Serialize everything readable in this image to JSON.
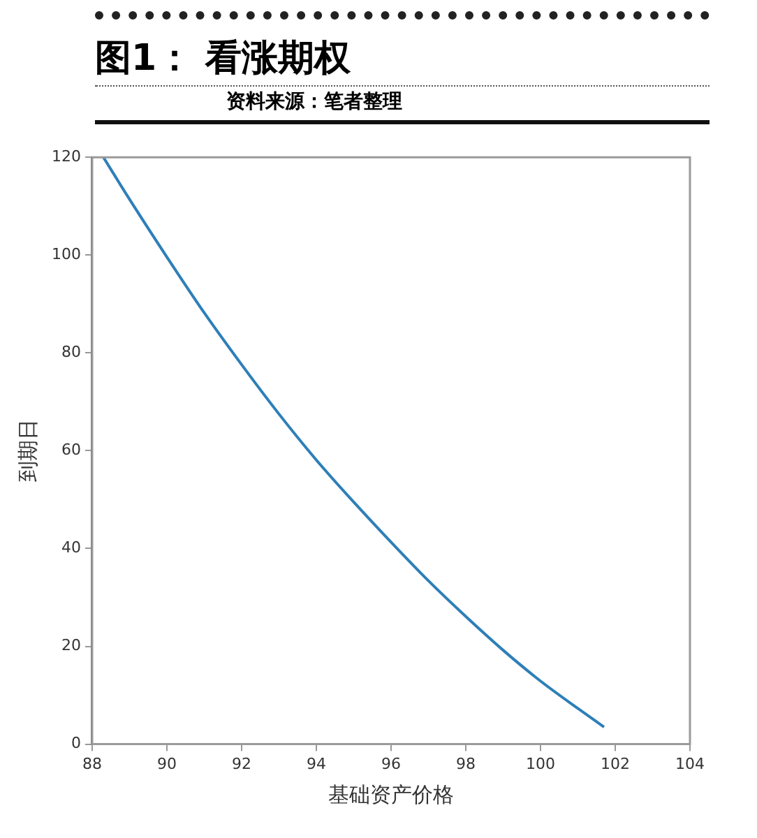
{
  "chart_data": {
    "type": "line",
    "title": "图1： 看涨期权",
    "annotations": [
      "资料来源：笔者整理"
    ],
    "xlabel": "基础资产价格",
    "ylabel": "到期日",
    "x": [
      88.3,
      89,
      90,
      91,
      92,
      93,
      94,
      95,
      96,
      97,
      98,
      99,
      100,
      101,
      101.7
    ],
    "series": [
      {
        "color": "#2e7fb8",
        "values": [
          120,
          111.4,
          99.6,
          88.2,
          77.6,
          67.5,
          58.1,
          49.5,
          41.3,
          33.4,
          26.1,
          19.2,
          12.9,
          7.3,
          3.5
        ]
      }
    ],
    "xlim": [
      88,
      104
    ],
    "xticks": [
      88,
      90,
      92,
      94,
      96,
      98,
      100,
      102,
      104
    ],
    "ylim": [
      0,
      120
    ],
    "yticks": [
      0,
      20,
      40,
      60,
      80,
      100,
      120
    ],
    "grid": false,
    "legend": false,
    "marker": "none",
    "line_style": "solid"
  }
}
